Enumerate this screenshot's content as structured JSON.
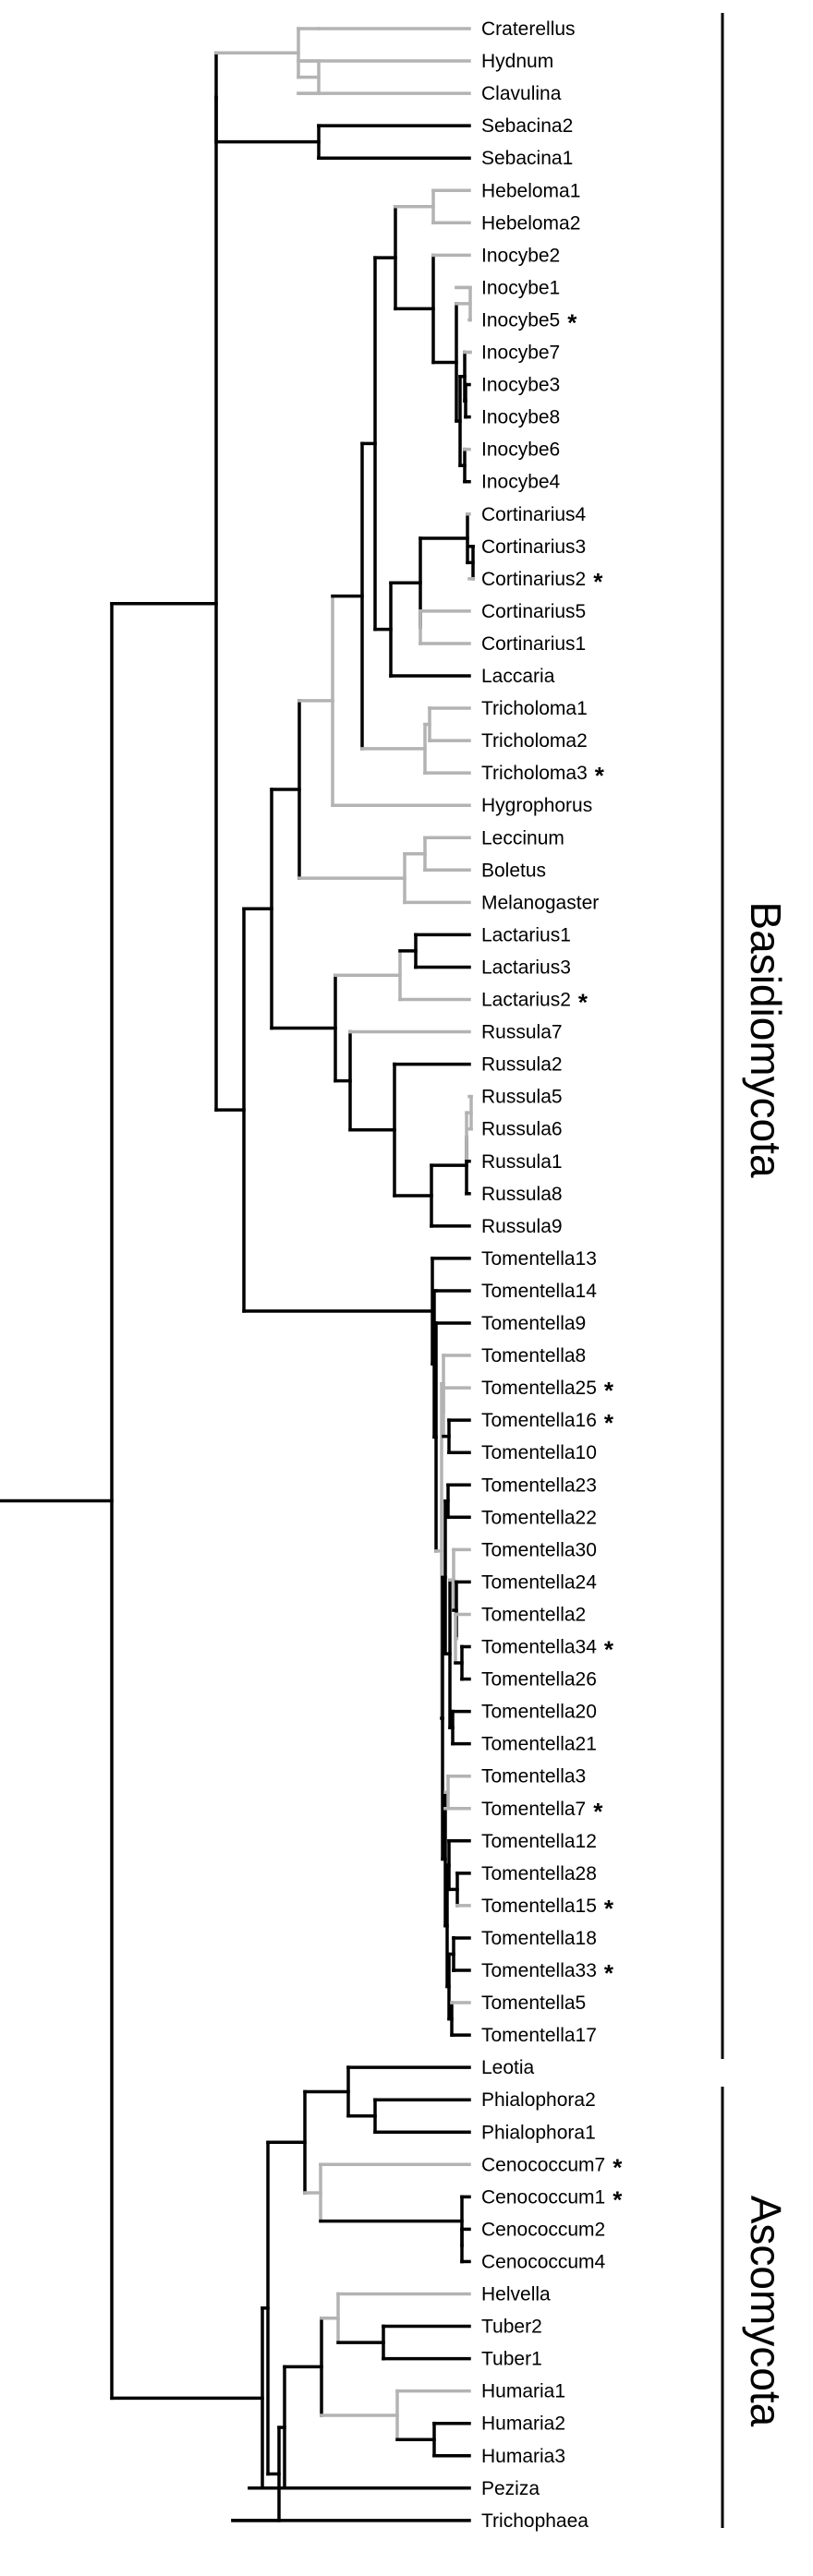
{
  "colors": {
    "dark": "#000000",
    "light": "#b3b3b3"
  },
  "taxa": [
    {
      "label": "Craterellus",
      "star": false
    },
    {
      "label": "Hydnum",
      "star": false
    },
    {
      "label": "Clavulina",
      "star": false
    },
    {
      "label": "Sebacina2",
      "star": false
    },
    {
      "label": "Sebacina1",
      "star": false
    },
    {
      "label": "Hebeloma1",
      "star": false
    },
    {
      "label": "Hebeloma2",
      "star": false
    },
    {
      "label": "Inocybe2",
      "star": false
    },
    {
      "label": "Inocybe1",
      "star": false
    },
    {
      "label": "Inocybe5",
      "star": true
    },
    {
      "label": "Inocybe7",
      "star": false
    },
    {
      "label": "Inocybe3",
      "star": false
    },
    {
      "label": "Inocybe8",
      "star": false
    },
    {
      "label": "Inocybe6",
      "star": false
    },
    {
      "label": "Inocybe4",
      "star": false
    },
    {
      "label": "Cortinarius4",
      "star": false
    },
    {
      "label": "Cortinarius3",
      "star": false
    },
    {
      "label": "Cortinarius2",
      "star": true
    },
    {
      "label": "Cortinarius5",
      "star": false
    },
    {
      "label": "Cortinarius1",
      "star": false
    },
    {
      "label": "Laccaria",
      "star": false
    },
    {
      "label": "Tricholoma1",
      "star": false
    },
    {
      "label": "Tricholoma2",
      "star": false
    },
    {
      "label": "Tricholoma3",
      "star": true
    },
    {
      "label": "Hygrophorus",
      "star": false
    },
    {
      "label": "Leccinum",
      "star": false
    },
    {
      "label": "Boletus",
      "star": false
    },
    {
      "label": "Melanogaster",
      "star": false
    },
    {
      "label": "Lactarius1",
      "star": false
    },
    {
      "label": "Lactarius3",
      "star": false
    },
    {
      "label": "Lactarius2",
      "star": true
    },
    {
      "label": "Russula7",
      "star": false
    },
    {
      "label": "Russula2",
      "star": false
    },
    {
      "label": "Russula5",
      "star": false
    },
    {
      "label": "Russula6",
      "star": false
    },
    {
      "label": "Russula1",
      "star": false
    },
    {
      "label": "Russula8",
      "star": false
    },
    {
      "label": "Russula9",
      "star": false
    },
    {
      "label": "Tomentella13",
      "star": false
    },
    {
      "label": "Tomentella14",
      "star": false
    },
    {
      "label": "Tomentella9",
      "star": false
    },
    {
      "label": "Tomentella8",
      "star": false
    },
    {
      "label": "Tomentella25",
      "star": true
    },
    {
      "label": "Tomentella16",
      "star": true
    },
    {
      "label": "Tomentella10",
      "star": false
    },
    {
      "label": "Tomentella23",
      "star": false
    },
    {
      "label": "Tomentella22",
      "star": false
    },
    {
      "label": "Tomentella30",
      "star": false
    },
    {
      "label": "Tomentella24",
      "star": false
    },
    {
      "label": "Tomentella2",
      "star": false
    },
    {
      "label": "Tomentella34",
      "star": true
    },
    {
      "label": "Tomentella26",
      "star": false
    },
    {
      "label": "Tomentella20",
      "star": false
    },
    {
      "label": "Tomentella21",
      "star": false
    },
    {
      "label": "Tomentella3",
      "star": false
    },
    {
      "label": "Tomentella7",
      "star": true
    },
    {
      "label": "Tomentella12",
      "star": false
    },
    {
      "label": "Tomentella28",
      "star": false
    },
    {
      "label": "Tomentella15",
      "star": true
    },
    {
      "label": "Tomentella18",
      "star": false
    },
    {
      "label": "Tomentella33",
      "star": true
    },
    {
      "label": "Tomentella5",
      "star": false
    },
    {
      "label": "Tomentella17",
      "star": false
    },
    {
      "label": "Leotia",
      "star": false
    },
    {
      "label": "Phialophora2",
      "star": false
    },
    {
      "label": "Phialophora1",
      "star": false
    },
    {
      "label": "Cenococcum7",
      "star": true
    },
    {
      "label": "Cenococcum1",
      "star": true
    },
    {
      "label": "Cenococcum2",
      "star": false
    },
    {
      "label": "Cenococcum4",
      "star": false
    },
    {
      "label": "Helvella",
      "star": false
    },
    {
      "label": "Tuber2",
      "star": false
    },
    {
      "label": "Tuber1",
      "star": false
    },
    {
      "label": "Humaria1",
      "star": false
    },
    {
      "label": "Humaria2",
      "star": false
    },
    {
      "label": "Humaria3",
      "star": false
    },
    {
      "label": "Peziza",
      "star": false
    },
    {
      "label": "Trichophaea",
      "star": false
    }
  ],
  "clades": [
    {
      "label": "Basidiomycota"
    },
    {
      "label": "Ascomycota"
    }
  ],
  "star_symbol": "*"
}
